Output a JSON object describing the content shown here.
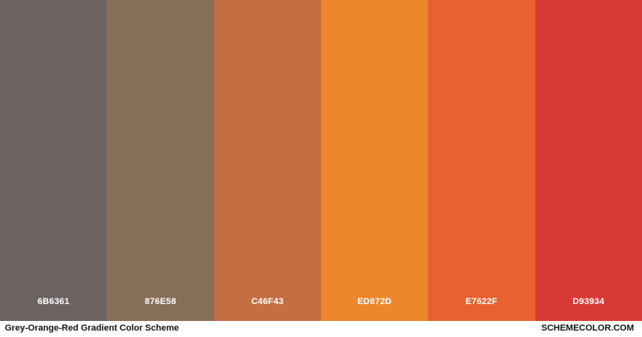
{
  "swatches": [
    {
      "hex_label": "6B6361",
      "color": "#6B6361"
    },
    {
      "hex_label": "876E58",
      "color": "#876E58"
    },
    {
      "hex_label": "C46F43",
      "color": "#C46F43"
    },
    {
      "hex_label": "ED872D",
      "color": "#ED872D"
    },
    {
      "hex_label": "E7622F",
      "color": "#E7622F"
    },
    {
      "hex_label": "D93934",
      "color": "#D93934"
    }
  ],
  "footer": {
    "title": "Grey-Orange-Red Gradient Color Scheme",
    "brand": "SCHEMECOLOR.COM"
  }
}
